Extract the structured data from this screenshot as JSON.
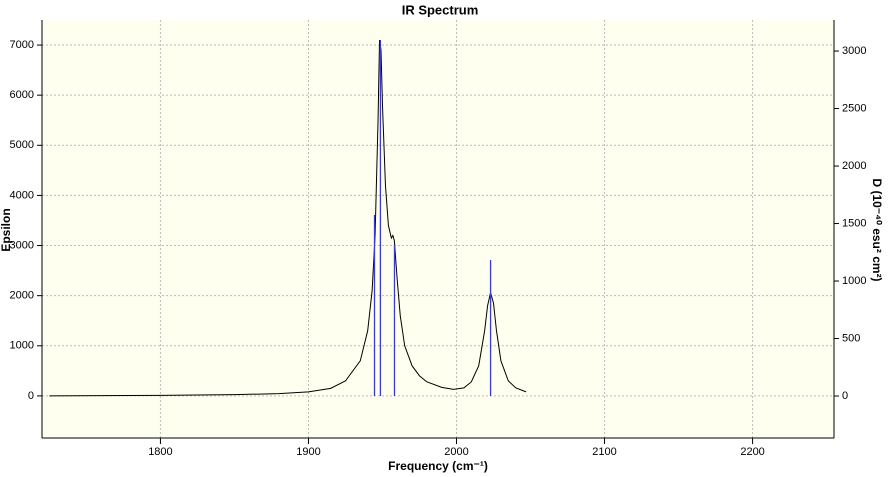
{
  "chart_data": {
    "type": "spectrum",
    "title": "IR Spectrum",
    "x_label": "Frequency (cm⁻¹)",
    "y_label": "Epsilon",
    "y2_label": "D (10⁻⁴⁰ esu² cm²)",
    "xlim": [
      1720,
      2255
    ],
    "xticks": [
      1800,
      1900,
      2000,
      2100,
      2200
    ],
    "ylim": [
      -840,
      7500
    ],
    "yticks": [
      0,
      1000,
      2000,
      3000,
      4000,
      5000,
      6000,
      7000
    ],
    "y2lim": [
      -365,
      3270
    ],
    "y2ticks": [
      0,
      500,
      1000,
      1500,
      2000,
      2500,
      3000
    ],
    "grid": true,
    "curve": {
      "color": "#000000",
      "x": [
        1725,
        1800,
        1850,
        1880,
        1900,
        1915,
        1925,
        1935,
        1940,
        1943,
        1945,
        1947,
        1948,
        1949,
        1950,
        1952,
        1954,
        1956,
        1957,
        1958,
        1960,
        1962,
        1965,
        1970,
        1975,
        1980,
        1990,
        1998,
        2005,
        2010,
        2015,
        2019,
        2021,
        2023,
        2025,
        2027,
        2030,
        2035,
        2040,
        2047
      ],
      "values": [
        0,
        10,
        25,
        45,
        80,
        150,
        300,
        700,
        1300,
        2100,
        3200,
        5500,
        7100,
        6900,
        5800,
        4200,
        3400,
        3150,
        3200,
        3100,
        2300,
        1600,
        1000,
        600,
        400,
        280,
        170,
        130,
        160,
        280,
        600,
        1300,
        1800,
        2060,
        1850,
        1300,
        700,
        300,
        160,
        80
      ]
    },
    "sticks": {
      "color": "#3a3ad0",
      "axis": "y2",
      "x": [
        1944.6,
        1948.6,
        1958.1,
        2023
      ],
      "values": [
        1574,
        3096,
        1313,
        1183
      ]
    }
  }
}
